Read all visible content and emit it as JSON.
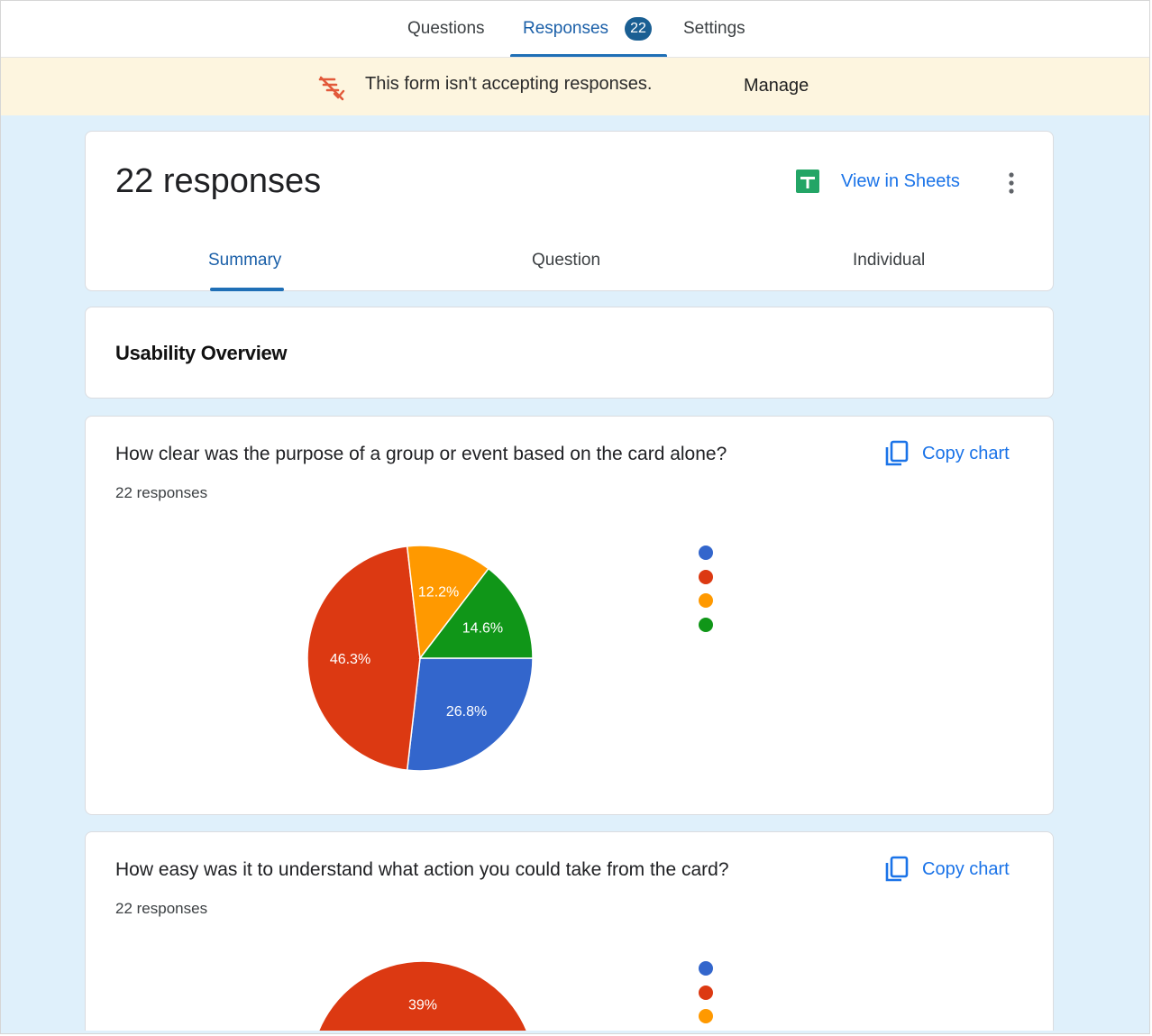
{
  "topnav": {
    "tabs": [
      {
        "label": "Questions"
      },
      {
        "label": "Responses",
        "badge": "22"
      },
      {
        "label": "Settings"
      }
    ]
  },
  "banner": {
    "message": "This form isn't accepting responses.",
    "action": "Manage",
    "icon": "responses-off-icon"
  },
  "summary_card": {
    "title": "22 responses",
    "view_in_sheets": "View in Sheets",
    "tabs": [
      "Summary",
      "Question",
      "Individual"
    ],
    "active_tab": "Summary"
  },
  "section": {
    "title": "Usability Overview"
  },
  "colors": {
    "blue": "#3366cc",
    "red": "#dc3912",
    "orange": "#ff9900",
    "green": "#109618",
    "accent": "#1a73e8"
  },
  "questions": [
    {
      "text": "How clear was the purpose of a group or event based on the card alone?",
      "count": "22 responses",
      "copy_label": "Copy chart"
    },
    {
      "text": "How easy was it to understand what action you could take from the card?",
      "count": "22 responses",
      "copy_label": "Copy chart"
    }
  ],
  "chart_data": [
    {
      "type": "pie",
      "slices": [
        {
          "label": "26.8%",
          "value": 26.8,
          "color": "#3366cc"
        },
        {
          "label": "46.3%",
          "value": 46.3,
          "color": "#dc3912"
        },
        {
          "label": "12.2%",
          "value": 12.2,
          "color": "#ff9900"
        },
        {
          "label": "14.6%",
          "value": 14.6,
          "color": "#109618"
        }
      ],
      "legend_colors": [
        "#3366cc",
        "#dc3912",
        "#ff9900",
        "#109618"
      ]
    },
    {
      "type": "pie",
      "slices": [
        {
          "label": "39%",
          "value": 39,
          "color": "#dc3912"
        }
      ],
      "legend_colors": [
        "#3366cc",
        "#dc3912",
        "#ff9900"
      ]
    }
  ]
}
